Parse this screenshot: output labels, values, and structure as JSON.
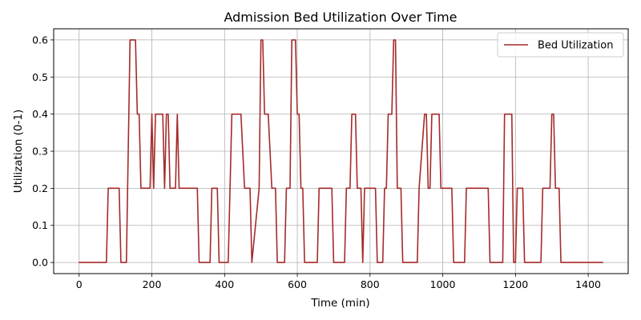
{
  "chart_data": {
    "type": "line",
    "title": "Admission Bed Utilization Over Time",
    "xlabel": "Time (min)",
    "ylabel": "Utilization (0-1)",
    "xlim": [
      -70,
      1510
    ],
    "ylim": [
      -0.03,
      0.63
    ],
    "xticks": [
      0,
      200,
      400,
      600,
      800,
      1000,
      1200,
      1400
    ],
    "yticks": [
      0.0,
      0.1,
      0.2,
      0.3,
      0.4,
      0.5,
      0.6
    ],
    "xtick_labels": [
      "0",
      "200",
      "400",
      "600",
      "800",
      "1000",
      "1200",
      "1400"
    ],
    "ytick_labels": [
      "0.0",
      "0.1",
      "0.2",
      "0.3",
      "0.4",
      "0.5",
      "0.6"
    ],
    "grid": true,
    "legend": {
      "placement": "top-right",
      "entries": [
        "Bed Utilization"
      ]
    },
    "series": [
      {
        "name": "Bed Utilization",
        "color": "#a52a2a",
        "x": [
          0,
          75,
          80,
          110,
          115,
          130,
          140,
          145,
          155,
          160,
          165,
          170,
          195,
          200,
          205,
          210,
          230,
          235,
          240,
          245,
          250,
          265,
          270,
          275,
          325,
          330,
          360,
          365,
          380,
          385,
          410,
          420,
          445,
          455,
          470,
          475,
          495,
          500,
          505,
          510,
          520,
          530,
          540,
          545,
          565,
          570,
          580,
          585,
          595,
          600,
          605,
          610,
          615,
          620,
          655,
          660,
          695,
          700,
          730,
          735,
          745,
          750,
          760,
          765,
          775,
          780,
          785,
          790,
          815,
          820,
          835,
          840,
          845,
          850,
          860,
          865,
          870,
          875,
          885,
          890,
          930,
          935,
          950,
          955,
          960,
          965,
          970,
          990,
          995,
          1025,
          1030,
          1060,
          1065,
          1125,
          1130,
          1165,
          1170,
          1190,
          1195,
          1200,
          1205,
          1220,
          1225,
          1270,
          1275,
          1295,
          1300,
          1305,
          1310,
          1320,
          1325,
          1440
        ],
        "values": [
          0.0,
          0.0,
          0.2,
          0.2,
          0.0,
          0.0,
          0.6,
          0.6,
          0.6,
          0.4,
          0.4,
          0.2,
          0.2,
          0.4,
          0.2,
          0.4,
          0.4,
          0.2,
          0.4,
          0.4,
          0.2,
          0.2,
          0.4,
          0.2,
          0.2,
          0.0,
          0.0,
          0.2,
          0.2,
          0.0,
          0.0,
          0.4,
          0.4,
          0.2,
          0.2,
          0.0,
          0.2,
          0.6,
          0.6,
          0.4,
          0.4,
          0.2,
          0.2,
          0.0,
          0.0,
          0.2,
          0.2,
          0.6,
          0.6,
          0.4,
          0.4,
          0.2,
          0.2,
          0.0,
          0.0,
          0.2,
          0.2,
          0.0,
          0.0,
          0.2,
          0.2,
          0.4,
          0.4,
          0.2,
          0.2,
          0.0,
          0.2,
          0.2,
          0.2,
          0.0,
          0.0,
          0.2,
          0.2,
          0.4,
          0.4,
          0.6,
          0.6,
          0.2,
          0.2,
          0.0,
          0.0,
          0.2,
          0.4,
          0.4,
          0.2,
          0.2,
          0.4,
          0.4,
          0.2,
          0.2,
          0.0,
          0.0,
          0.2,
          0.2,
          0.0,
          0.0,
          0.4,
          0.4,
          0.0,
          0.0,
          0.2,
          0.2,
          0.0,
          0.0,
          0.2,
          0.2,
          0.4,
          0.4,
          0.2,
          0.2,
          0.0,
          0.0
        ]
      }
    ]
  }
}
